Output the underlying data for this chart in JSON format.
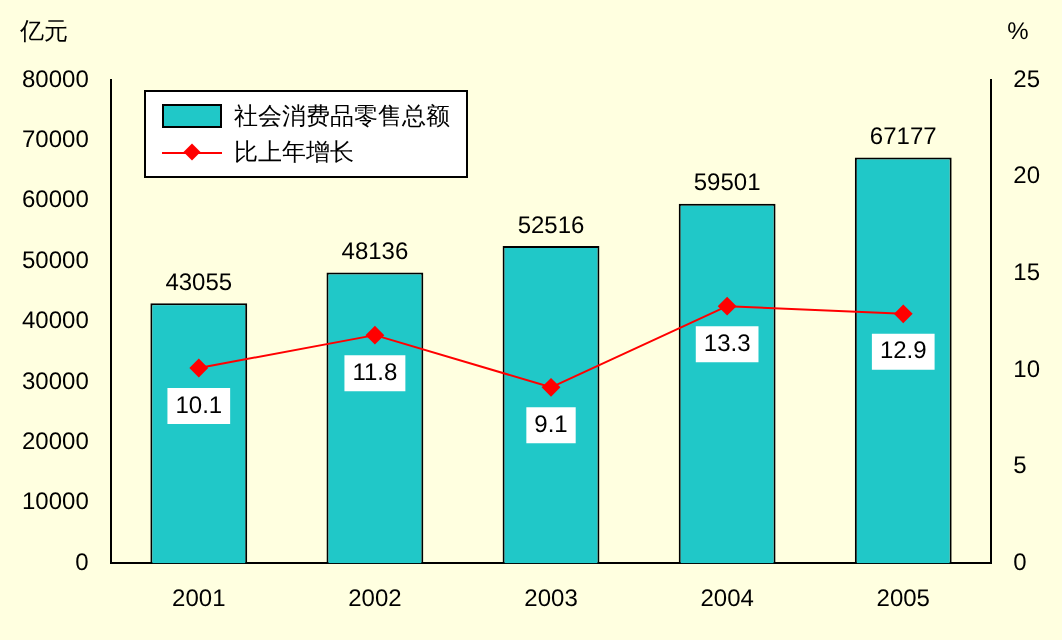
{
  "chart_data": {
    "type": "bar",
    "ylabel": "亿元",
    "y2label": "%",
    "categories": [
      "2001",
      "2002",
      "2003",
      "2004",
      "2005"
    ],
    "series": [
      {
        "name": "社会消费品零售总额",
        "color": "#20c8c8",
        "values": [
          43055,
          48136,
          52516,
          59501,
          67177
        ]
      },
      {
        "name": "比上年增长",
        "type": "line",
        "axis": "y2",
        "color": "#ff0000",
        "values": [
          10.1,
          11.8,
          9.1,
          13.3,
          12.9
        ]
      }
    ],
    "ylim": [
      0,
      80000
    ],
    "yticks": [
      0,
      10000,
      20000,
      30000,
      40000,
      50000,
      60000,
      70000,
      80000
    ],
    "y2lim": [
      0,
      25
    ],
    "y2ticks": [
      0,
      5,
      10,
      15,
      20,
      25
    ],
    "marker": "diamond",
    "data_labels": true,
    "legend": "top left",
    "grid": false
  }
}
